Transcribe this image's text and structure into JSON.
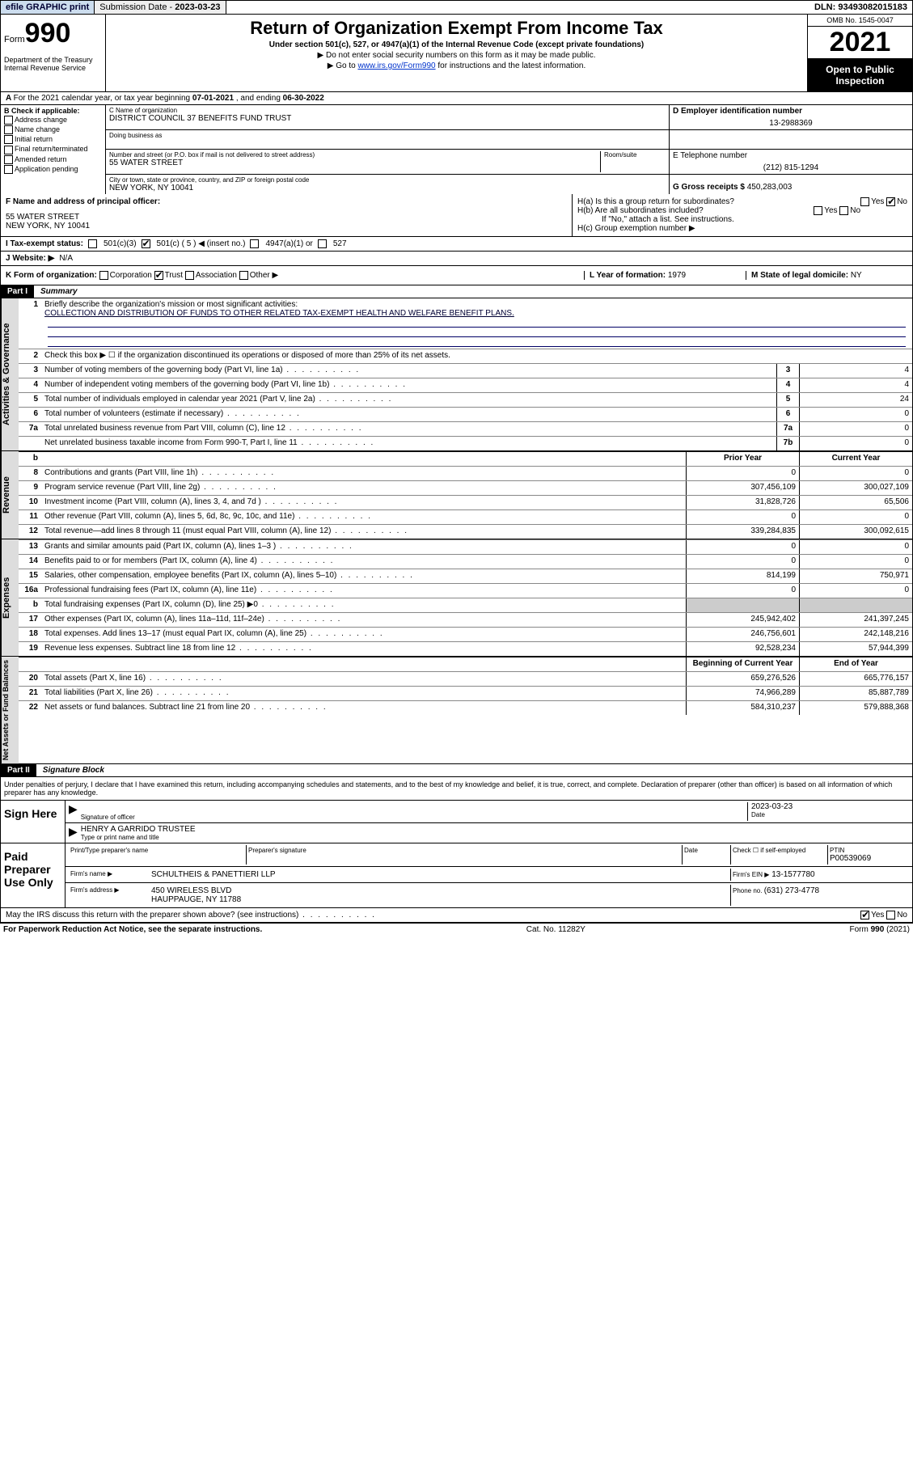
{
  "topbar": {
    "efile": "efile GRAPHIC print",
    "submission_label": "Submission Date - ",
    "submission_date": "2023-03-23",
    "dln_label": "DLN: ",
    "dln": "93493082015183"
  },
  "header": {
    "form_label": "Form",
    "form_number": "990",
    "dept": "Department of the Treasury\nInternal Revenue Service",
    "title": "Return of Organization Exempt From Income Tax",
    "subtitle": "Under section 501(c), 527, or 4947(a)(1) of the Internal Revenue Code (except private foundations)",
    "note1": "Do not enter social security numbers on this form as it may be made public.",
    "note2_pre": "Go to ",
    "note2_link": "www.irs.gov/Form990",
    "note2_post": " for instructions and the latest information.",
    "omb": "OMB No. 1545-0047",
    "year": "2021",
    "oti": "Open to Public Inspection"
  },
  "row_a": {
    "text_pre": "For the 2021 calendar year, or tax year beginning ",
    "begin": "07-01-2021",
    "text_mid": " , and ending ",
    "end": "06-30-2022"
  },
  "col_b": {
    "header": "B Check if applicable:",
    "items": [
      "Address change",
      "Name change",
      "Initial return",
      "Final return/terminated",
      "Amended return",
      "Application pending"
    ]
  },
  "col_c": {
    "name_label": "C Name of organization",
    "name": "DISTRICT COUNCIL 37 BENEFITS FUND TRUST",
    "dba_label": "Doing business as",
    "addr_label": "Number and street (or P.O. box if mail is not delivered to street address)",
    "room_label": "Room/suite",
    "addr": "55 WATER STREET",
    "city_label": "City or town, state or province, country, and ZIP or foreign postal code",
    "city": "NEW YORK, NY  10041"
  },
  "col_d": {
    "ein_label": "D Employer identification number",
    "ein": "13-2988369",
    "tel_label": "E Telephone number",
    "tel": "(212) 815-1294",
    "gross_label": "G Gross receipts $ ",
    "gross": "450,283,003"
  },
  "row_f": {
    "label": "F Name and address of principal officer:",
    "addr1": "55 WATER STREET",
    "addr2": "NEW YORK, NY  10041"
  },
  "row_h": {
    "ha": "H(a)  Is this a group return for subordinates?",
    "ha_yes": "Yes",
    "ha_no": "No",
    "hb": "H(b)  Are all subordinates included?",
    "hb_yes": "Yes",
    "hb_no": "No",
    "hb_note": "If \"No,\" attach a list. See instructions.",
    "hc": "H(c)  Group exemption number ▶"
  },
  "row_i": {
    "label": "I   Tax-exempt status:",
    "opt1": "501(c)(3)",
    "opt2": "501(c) ( 5 ) ◀ (insert no.)",
    "opt3": "4947(a)(1) or",
    "opt4": "527"
  },
  "row_j": {
    "label": "J   Website: ▶",
    "value": "N/A"
  },
  "row_k": {
    "label": "K Form of organization:",
    "opts": [
      "Corporation",
      "Trust",
      "Association",
      "Other ▶"
    ],
    "checked_idx": 1,
    "l_label": "L Year of formation: ",
    "l_val": "1979",
    "m_label": "M State of legal domicile: ",
    "m_val": "NY"
  },
  "parts": {
    "p1": "Part I",
    "p1_title": "Summary",
    "p2": "Part II",
    "p2_title": "Signature Block"
  },
  "summary": {
    "q1": "Briefly describe the organization's mission or most significant activities:",
    "mission": "COLLECTION AND DISTRIBUTION OF FUNDS TO OTHER RELATED TAX-EXEMPT HEALTH AND WELFARE BENEFIT PLANS.",
    "q2": "Check this box ▶ ☐  if the organization discontinued its operations or disposed of more than 25% of its net assets.",
    "lines_gov": [
      {
        "n": "3",
        "t": "Number of voting members of the governing body (Part VI, line 1a)",
        "box": "3",
        "v": "4"
      },
      {
        "n": "4",
        "t": "Number of independent voting members of the governing body (Part VI, line 1b)",
        "box": "4",
        "v": "4"
      },
      {
        "n": "5",
        "t": "Total number of individuals employed in calendar year 2021 (Part V, line 2a)",
        "box": "5",
        "v": "24"
      },
      {
        "n": "6",
        "t": "Total number of volunteers (estimate if necessary)",
        "box": "6",
        "v": "0"
      },
      {
        "n": "7a",
        "t": "Total unrelated business revenue from Part VIII, column (C), line 12",
        "box": "7a",
        "v": "0"
      },
      {
        "n": "",
        "t": "Net unrelated business taxable income from Form 990-T, Part I, line 11",
        "box": "7b",
        "v": "0"
      }
    ],
    "col_prior": "Prior Year",
    "col_current": "Current Year",
    "lines_rev": [
      {
        "n": "8",
        "t": "Contributions and grants (Part VIII, line 1h)",
        "p": "0",
        "c": "0"
      },
      {
        "n": "9",
        "t": "Program service revenue (Part VIII, line 2g)",
        "p": "307,456,109",
        "c": "300,027,109"
      },
      {
        "n": "10",
        "t": "Investment income (Part VIII, column (A), lines 3, 4, and 7d )",
        "p": "31,828,726",
        "c": "65,506"
      },
      {
        "n": "11",
        "t": "Other revenue (Part VIII, column (A), lines 5, 6d, 8c, 9c, 10c, and 11e)",
        "p": "0",
        "c": "0"
      },
      {
        "n": "12",
        "t": "Total revenue—add lines 8 through 11 (must equal Part VIII, column (A), line 12)",
        "p": "339,284,835",
        "c": "300,092,615"
      }
    ],
    "lines_exp": [
      {
        "n": "13",
        "t": "Grants and similar amounts paid (Part IX, column (A), lines 1–3 )",
        "p": "0",
        "c": "0"
      },
      {
        "n": "14",
        "t": "Benefits paid to or for members (Part IX, column (A), line 4)",
        "p": "0",
        "c": "0"
      },
      {
        "n": "15",
        "t": "Salaries, other compensation, employee benefits (Part IX, column (A), lines 5–10)",
        "p": "814,199",
        "c": "750,971"
      },
      {
        "n": "16a",
        "t": "Professional fundraising fees (Part IX, column (A), line 11e)",
        "p": "0",
        "c": "0"
      },
      {
        "n": "b",
        "t": "Total fundraising expenses (Part IX, column (D), line 25) ▶0",
        "p": "",
        "c": "",
        "shade": true
      },
      {
        "n": "17",
        "t": "Other expenses (Part IX, column (A), lines 11a–11d, 11f–24e)",
        "p": "245,942,402",
        "c": "241,397,245"
      },
      {
        "n": "18",
        "t": "Total expenses. Add lines 13–17 (must equal Part IX, column (A), line 25)",
        "p": "246,756,601",
        "c": "242,148,216"
      },
      {
        "n": "19",
        "t": "Revenue less expenses. Subtract line 18 from line 12",
        "p": "92,528,234",
        "c": "57,944,399"
      }
    ],
    "col_begin": "Beginning of Current Year",
    "col_end": "End of Year",
    "lines_net": [
      {
        "n": "20",
        "t": "Total assets (Part X, line 16)",
        "p": "659,276,526",
        "c": "665,776,157"
      },
      {
        "n": "21",
        "t": "Total liabilities (Part X, line 26)",
        "p": "74,966,289",
        "c": "85,887,789"
      },
      {
        "n": "22",
        "t": "Net assets or fund balances. Subtract line 21 from line 20",
        "p": "584,310,237",
        "c": "579,888,368"
      }
    ],
    "side_labels": {
      "gov": "Activities & Governance",
      "rev": "Revenue",
      "exp": "Expenses",
      "net": "Net Assets or Fund Balances"
    }
  },
  "sig": {
    "perjury": "Under penalties of perjury, I declare that I have examined this return, including accompanying schedules and statements, and to the best of my knowledge and belief, it is true, correct, and complete. Declaration of preparer (other than officer) is based on all information of which preparer has any knowledge.",
    "sign_here": "Sign Here",
    "sig_officer": "Signature of officer",
    "date_label": "Date",
    "date": "2023-03-23",
    "name_title": "HENRY A GARRIDO  TRUSTEE",
    "name_label": "Type or print name and title",
    "paid": "Paid Preparer Use Only",
    "prep_name_label": "Print/Type preparer's name",
    "prep_sig_label": "Preparer's signature",
    "check_if": "Check ☐ if self-employed",
    "ptin_label": "PTIN",
    "ptin": "P00539069",
    "firm_name_label": "Firm's name    ▶",
    "firm_name": "SCHULTHEIS & PANETTIERI LLP",
    "firm_ein_label": "Firm's EIN ▶",
    "firm_ein": "13-1577780",
    "firm_addr_label": "Firm's address ▶",
    "firm_addr1": "450 WIRELESS BLVD",
    "firm_addr2": "HAUPPAUGE, NY  11788",
    "phone_label": "Phone no. ",
    "phone": "(631) 273-4778",
    "discuss": "May the IRS discuss this return with the preparer shown above? (see instructions)",
    "discuss_yes": "Yes",
    "discuss_no": "No"
  },
  "footer": {
    "left": "For Paperwork Reduction Act Notice, see the separate instructions.",
    "mid": "Cat. No. 11282Y",
    "right": "Form 990 (2021)"
  }
}
